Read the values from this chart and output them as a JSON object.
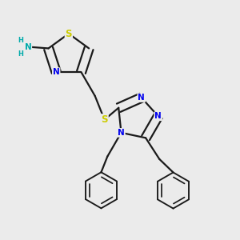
{
  "background_color": "#ebebeb",
  "atom_colors": {
    "N": "#0000ee",
    "S": "#cccc00",
    "NH2_N": "#00aaaa",
    "NH2_H": "#00aaaa"
  },
  "bond_color": "#1a1a1a",
  "bond_width": 1.6,
  "font_size": 8.5,
  "title": ""
}
